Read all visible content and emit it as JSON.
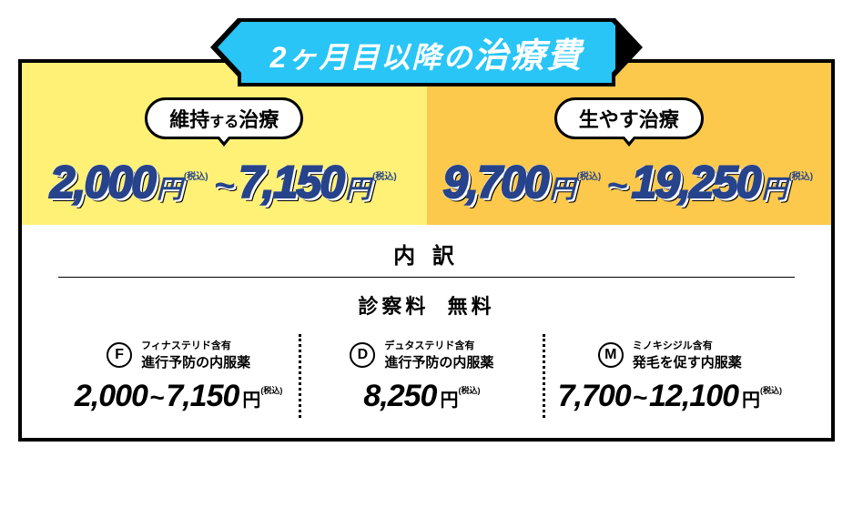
{
  "colors": {
    "banner_bg": "#29c5f6",
    "border": "#000000",
    "price_blue": "#26438b",
    "col_left_bg": "#fff176",
    "col_right_bg": "#fdc94c",
    "white": "#ffffff"
  },
  "header": {
    "prefix_small": "2ヶ月目以降の",
    "main": "治療費"
  },
  "plans": [
    {
      "pill_strong": "維持",
      "pill_small": "する",
      "pill_tail": "治療",
      "price_low": "2,000",
      "price_high": "7,150",
      "unit": "円",
      "tax": "(税込)",
      "bg": "#fff176"
    },
    {
      "pill_strong": "生やす",
      "pill_small": "",
      "pill_tail": "治療",
      "price_low": "9,700",
      "price_high": "19,250",
      "unit": "円",
      "tax": "(税込)",
      "bg": "#fdc94c"
    }
  ],
  "breakdown": {
    "title": "内 訳",
    "consult_label": "診察料",
    "consult_value": "無料"
  },
  "meds": [
    {
      "letter": "F",
      "ingredient": "フィナステリド含有",
      "name": "進行予防の内服薬",
      "price_low": "2,000",
      "price_high": "7,150",
      "unit": "円",
      "tax": "(税込)"
    },
    {
      "letter": "D",
      "ingredient": "デュタステリド含有",
      "name": "進行予防の内服薬",
      "price_low": "",
      "price_high": "8,250",
      "unit": "円",
      "tax": "(税込)"
    },
    {
      "letter": "M",
      "ingredient": "ミノキシジル含有",
      "name": "発毛を促す内服薬",
      "price_low": "7,700",
      "price_high": "12,100",
      "unit": "円",
      "tax": "(税込)"
    }
  ]
}
